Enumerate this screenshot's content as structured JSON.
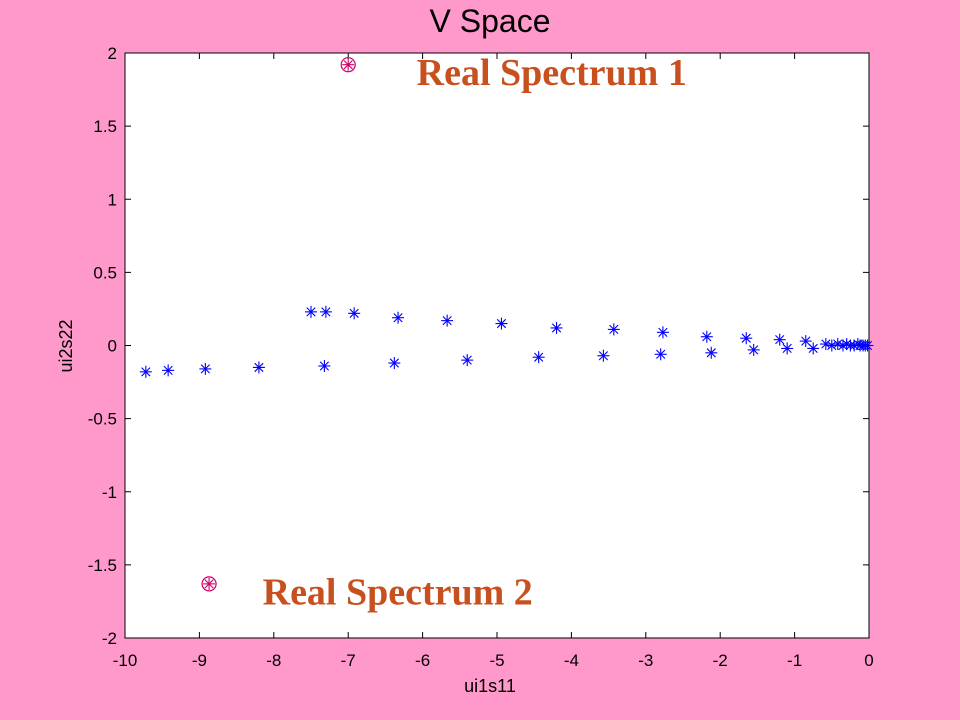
{
  "chart_data": {
    "type": "scatter",
    "title": "V Space",
    "xlabel": "ui1s11",
    "ylabel": "ui2s22",
    "xlim": [
      -10,
      0
    ],
    "ylim": [
      -2,
      2
    ],
    "xticks": [
      -10,
      -9,
      -8,
      -7,
      -6,
      -5,
      -4,
      -3,
      -2,
      -1,
      0
    ],
    "yticks": [
      -2,
      -1.5,
      -1,
      -0.5,
      0,
      0.5,
      1,
      1.5,
      2
    ],
    "grid": false,
    "colors": {
      "series": "#0000ff",
      "highlight": "#cc0066",
      "annotation": "#c8501e",
      "background": "#ff99cc",
      "plot": "#ffffff"
    },
    "series": [
      {
        "marker": "asterisk",
        "points": [
          [
            -9.72,
            -0.18
          ],
          [
            -9.42,
            -0.17
          ],
          [
            -8.92,
            -0.16
          ],
          [
            -8.2,
            -0.15
          ],
          [
            -7.32,
            -0.14
          ],
          [
            -6.38,
            -0.12
          ],
          [
            -5.4,
            -0.1
          ],
          [
            -4.44,
            -0.08
          ],
          [
            -3.57,
            -0.07
          ],
          [
            -2.8,
            -0.06
          ],
          [
            -2.12,
            -0.05
          ],
          [
            -1.55,
            -0.03
          ],
          [
            -1.1,
            -0.02
          ],
          [
            -0.75,
            -0.02
          ],
          [
            -7.5,
            0.23
          ],
          [
            -7.3,
            0.23
          ],
          [
            -6.92,
            0.22
          ],
          [
            -6.33,
            0.19
          ],
          [
            -5.67,
            0.17
          ],
          [
            -4.94,
            0.15
          ],
          [
            -4.2,
            0.12
          ],
          [
            -3.43,
            0.11
          ],
          [
            -2.77,
            0.09
          ],
          [
            -2.18,
            0.06
          ],
          [
            -1.65,
            0.05
          ],
          [
            -1.2,
            0.04
          ],
          [
            -0.85,
            0.03
          ],
          [
            -0.58,
            0.01
          ],
          [
            -0.5,
            0.0
          ],
          [
            -0.42,
            0.01
          ],
          [
            -0.35,
            0.0
          ],
          [
            -0.3,
            0.01
          ],
          [
            -0.25,
            0.0
          ],
          [
            -0.2,
            0.0
          ],
          [
            -0.15,
            0.01
          ],
          [
            -0.12,
            0.0
          ],
          [
            -0.08,
            0.0
          ],
          [
            -0.05,
            0.0
          ],
          [
            -0.02,
            0.0
          ]
        ]
      },
      {
        "marker": "circled-asterisk",
        "points": [
          [
            -7.0,
            1.92
          ],
          [
            -8.87,
            -1.63
          ]
        ]
      }
    ],
    "annotations": [
      {
        "text": "Real Spectrum 1",
        "x": -6.08,
        "y": 1.78
      },
      {
        "text": "Real Spectrum 2",
        "x": -8.15,
        "y": -1.77
      }
    ]
  }
}
